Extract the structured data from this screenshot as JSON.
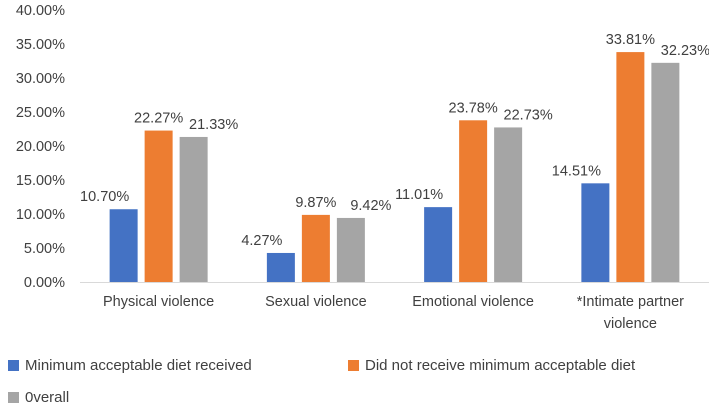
{
  "chart_data": {
    "type": "bar",
    "categories": [
      "Physical violence",
      "Sexual violence",
      "Emotional violence",
      "*Intimate partner violence"
    ],
    "category_label_lines": [
      [
        "Physical violence"
      ],
      [
        "Sexual violence"
      ],
      [
        "Emotional violence"
      ],
      [
        "*Intimate partner",
        "violence"
      ]
    ],
    "series": [
      {
        "name": "Minimum acceptable diet received",
        "values": [
          10.7,
          4.27,
          11.01,
          14.51
        ],
        "labels": [
          "10.70%",
          "4.27%",
          "11.01%",
          "14.51%"
        ],
        "color": "#4472C4"
      },
      {
        "name": "Did not receive minimum acceptable diet",
        "values": [
          22.27,
          9.87,
          23.78,
          33.81
        ],
        "labels": [
          "22.27%",
          "9.87%",
          "23.78%",
          "33.81%"
        ],
        "color": "#ED7D31"
      },
      {
        "name": "0verall",
        "values": [
          21.33,
          9.42,
          22.73,
          32.23
        ],
        "labels": [
          "21.33%",
          "9.42%",
          "22.73%",
          "32.23%"
        ],
        "color": "#A5A5A5"
      }
    ],
    "ylim": [
      0,
      40
    ],
    "yticks": [
      "0.00%",
      "5.00%",
      "10.00%",
      "15.00%",
      "20.00%",
      "25.00%",
      "30.00%",
      "35.00%",
      "40.00%"
    ],
    "grid": false,
    "legend_position": "bottom"
  }
}
